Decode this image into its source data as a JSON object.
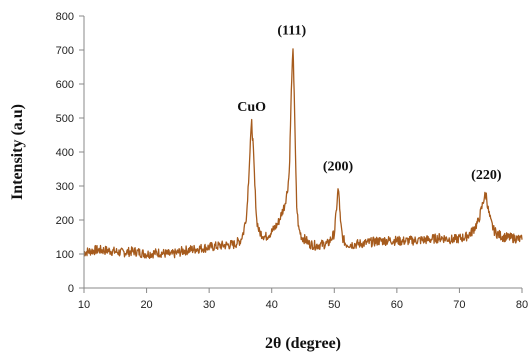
{
  "chart_data": {
    "type": "line",
    "title": "",
    "xlabel": "2θ (degree)",
    "ylabel": "Intensity (a.u)",
    "xlim": [
      10,
      80
    ],
    "ylim": [
      0,
      800
    ],
    "xticks": [
      10,
      20,
      30,
      40,
      50,
      60,
      70,
      80
    ],
    "yticks": [
      0,
      100,
      200,
      300,
      400,
      500,
      600,
      700,
      800
    ],
    "grid": false,
    "legend": "none",
    "line_color": "#A65B1D",
    "series": [
      {
        "x": [
          10,
          12,
          14,
          16,
          18,
          20,
          22,
          24,
          26,
          28,
          30,
          32,
          34,
          35,
          35.5,
          36,
          36.3,
          36.6,
          36.8,
          37.0,
          37.3,
          37.6,
          38,
          39,
          40,
          41,
          42,
          42.5,
          42.8,
          43.0,
          43.2,
          43.4,
          43.6,
          43.8,
          44.0,
          44.3,
          44.8,
          45.5,
          46,
          47,
          48,
          49,
          50,
          50.3,
          50.6,
          50.8,
          51.0,
          51.3,
          51.8,
          53,
          55,
          57,
          59,
          61,
          63,
          65,
          67,
          69,
          71,
          72,
          73,
          73.5,
          74,
          74.3,
          74.6,
          75,
          75.5,
          76,
          77,
          78,
          79,
          80
        ],
        "y": [
          105,
          112,
          110,
          104,
          108,
          100,
          104,
          98,
          110,
          115,
          120,
          125,
          128,
          140,
          165,
          220,
          320,
          430,
          485,
          430,
          300,
          200,
          165,
          150,
          165,
          190,
          240,
          285,
          340,
          480,
          620,
          695,
          580,
          380,
          240,
          175,
          150,
          140,
          130,
          125,
          128,
          130,
          160,
          220,
          290,
          260,
          190,
          150,
          130,
          128,
          132,
          138,
          140,
          138,
          140,
          142,
          148,
          142,
          150,
          165,
          195,
          230,
          270,
          272,
          230,
          195,
          170,
          160,
          150,
          148,
          146,
          142
        ]
      }
    ],
    "annotations": [
      {
        "text": "CuO",
        "x": 36.8,
        "y": 520
      },
      {
        "text": "(111)",
        "x": 43.2,
        "y": 745
      },
      {
        "text": "(200)",
        "x": 50.6,
        "y": 345
      },
      {
        "text": "(220)",
        "x": 74.3,
        "y": 320
      }
    ]
  }
}
